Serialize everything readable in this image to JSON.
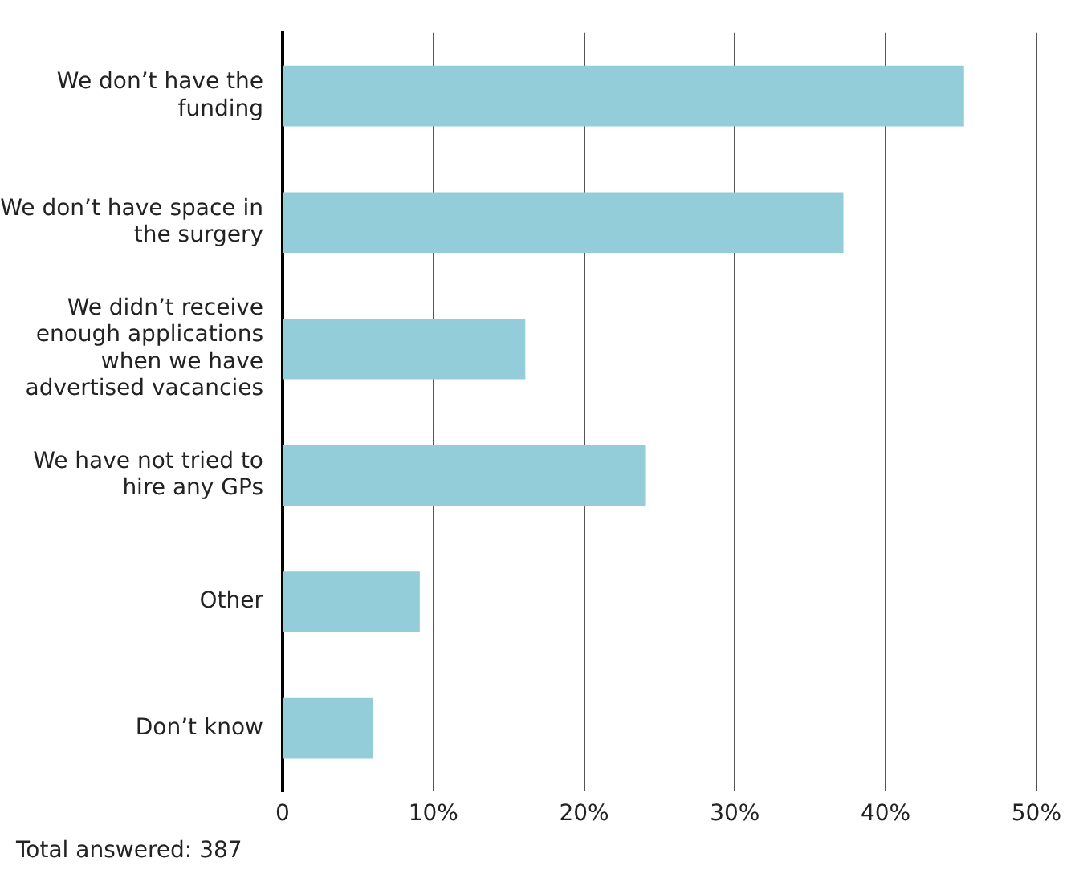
{
  "chart_data": {
    "type": "bar",
    "orientation": "horizontal",
    "categories": [
      "We don’t have the funding",
      "We don’t have space in the surgery",
      "We didn’t receive enough applications when we have advertised vacancies",
      "We have not tried to hire any GPs",
      "Other",
      "Don’t know"
    ],
    "values": [
      45.2,
      37.2,
      16.1,
      24.1,
      9.1,
      6.0
    ],
    "color": "#92cdd9",
    "xlim": [
      0,
      50
    ],
    "xticks": [
      0,
      {
        "value": 10,
        "label": "10%"
      },
      {
        "value": 20,
        "label": "20%"
      },
      {
        "value": 30,
        "label": "30%"
      },
      {
        "value": 40,
        "label": "40%"
      },
      {
        "value": 50,
        "label": "50%"
      }
    ],
    "grid": "x",
    "annotations": [
      "Total answered: 387"
    ]
  }
}
